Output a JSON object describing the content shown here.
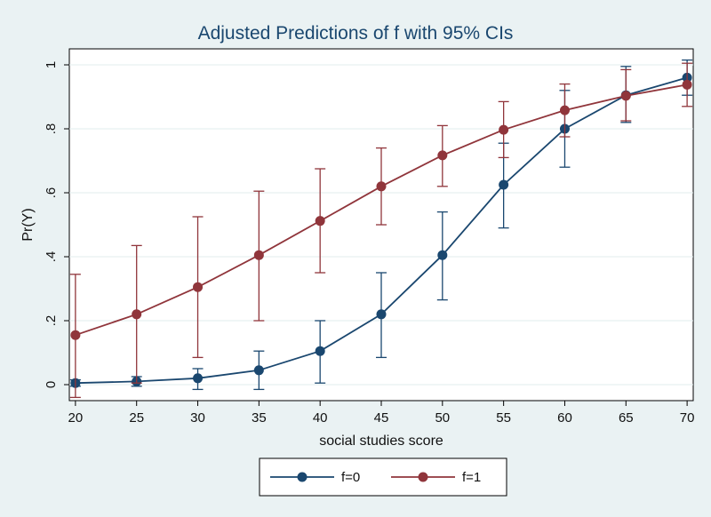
{
  "chart_data": {
    "type": "line",
    "title": "Adjusted Predictions of f with 95% CIs",
    "xlabel": "social studies score",
    "ylabel": "Pr(Y)",
    "x": [
      20,
      25,
      30,
      35,
      40,
      45,
      50,
      55,
      60,
      65,
      70
    ],
    "x_ticks": [
      "20",
      "25",
      "30",
      "35",
      "40",
      "45",
      "50",
      "55",
      "60",
      "65",
      "70"
    ],
    "y_ticks": [
      {
        "value": 0,
        "label": "0"
      },
      {
        "value": 0.2,
        "label": ".2"
      },
      {
        "value": 0.4,
        "label": ".4"
      },
      {
        "value": 0.6,
        "label": ".6"
      },
      {
        "value": 0.8,
        "label": ".8"
      },
      {
        "value": 1,
        "label": "1"
      }
    ],
    "xlim": [
      19.5,
      70.5
    ],
    "ylim": [
      -0.05,
      1.05
    ],
    "grid": true,
    "legend_position": "bottom",
    "series": [
      {
        "name": "f=0",
        "color": "#1a476f",
        "values": [
          0.005,
          0.01,
          0.02,
          0.045,
          0.105,
          0.22,
          0.405,
          0.625,
          0.8,
          0.905,
          0.96
        ],
        "ci_low": [
          -0.005,
          -0.005,
          -0.015,
          -0.015,
          0.005,
          0.085,
          0.265,
          0.49,
          0.68,
          0.82,
          0.905
        ],
        "ci_high": [
          0.015,
          0.025,
          0.05,
          0.105,
          0.2,
          0.35,
          0.54,
          0.755,
          0.92,
          0.995,
          1.015
        ]
      },
      {
        "name": "f=1",
        "color": "#90353b",
        "values": [
          0.155,
          0.22,
          0.305,
          0.405,
          0.512,
          0.62,
          0.717,
          0.797,
          0.858,
          0.903,
          0.938
        ],
        "ci_low": [
          -0.04,
          0.005,
          0.085,
          0.2,
          0.35,
          0.5,
          0.62,
          0.71,
          0.775,
          0.825,
          0.87
        ],
        "ci_high": [
          0.345,
          0.435,
          0.525,
          0.605,
          0.675,
          0.74,
          0.81,
          0.885,
          0.94,
          0.985,
          1.005
        ]
      }
    ]
  }
}
